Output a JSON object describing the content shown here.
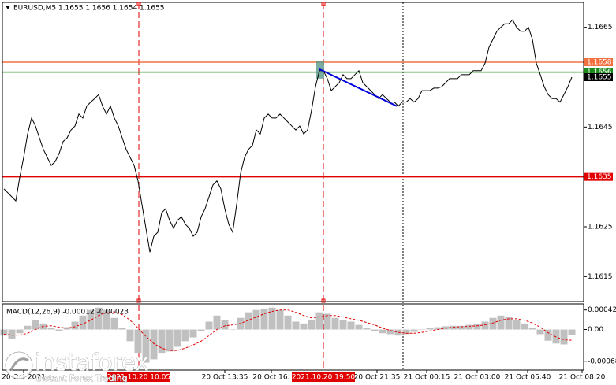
{
  "chart_data": {
    "type": "line",
    "title": "EURUSD,M5 1.1655 1.1656 1.1654 1.1655",
    "series": [
      {
        "name": "EURUSD",
        "color": "#000000",
        "values": [
          1.16326,
          1.16318,
          1.1631,
          1.16302,
          1.16349,
          1.16389,
          1.16436,
          1.16468,
          1.16452,
          1.16428,
          1.16405,
          1.16389,
          1.16373,
          1.16381,
          1.16397,
          1.16421,
          1.16428,
          1.16444,
          1.16452,
          1.16476,
          1.16468,
          1.16492,
          1.165,
          1.16507,
          1.16515,
          1.16492,
          1.16476,
          1.16492,
          1.16468,
          1.16452,
          1.16428,
          1.16405,
          1.16389,
          1.16373,
          1.16342,
          1.16294,
          1.16247,
          1.16199,
          1.16231,
          1.16239,
          1.16278,
          1.16286,
          1.16263,
          1.16247,
          1.16263,
          1.1627,
          1.16255,
          1.16247,
          1.16231,
          1.16239,
          1.1627,
          1.16286,
          1.1631,
          1.16334,
          1.16342,
          1.16326,
          1.16286,
          1.16255,
          1.16239,
          1.16294,
          1.16357,
          1.16389,
          1.16405,
          1.16413,
          1.16444,
          1.16436,
          1.16468,
          1.16476,
          1.16468,
          1.16468,
          1.16476,
          1.16468,
          1.1646,
          1.16452,
          1.16444,
          1.16452,
          1.16436,
          1.16444,
          1.16484,
          1.16531,
          1.16563,
          1.16563,
          1.16547,
          1.16523,
          1.16531,
          1.16539,
          1.16555,
          1.16547,
          1.16547,
          1.16555,
          1.16563,
          1.16539,
          1.16531,
          1.16523,
          1.16515,
          1.16507,
          1.16515,
          1.16507,
          1.165,
          1.165,
          1.16492,
          1.165,
          1.165,
          1.16507,
          1.165,
          1.16507,
          1.16523,
          1.16523,
          1.16523,
          1.16528,
          1.16528,
          1.16531,
          1.16539,
          1.16547,
          1.16547,
          1.16547,
          1.16555,
          1.16555,
          1.16555,
          1.16563,
          1.16563,
          1.16563,
          1.16578,
          1.1661,
          1.16626,
          1.16642,
          1.1665,
          1.16657,
          1.16657,
          1.16665,
          1.1665,
          1.16642,
          1.16642,
          1.1665,
          1.16626,
          1.16578,
          1.16555,
          1.16531,
          1.16515,
          1.16507,
          1.16507,
          1.165,
          1.16515,
          1.16531,
          1.1655
        ]
      }
    ],
    "xlim": [
      -1,
      146.6
    ],
    "ylim": [
      1.161,
      1.167
    ],
    "yticks": [
      1.1615,
      1.1625,
      1.1635,
      1.1645,
      1.1655,
      1.1665
    ],
    "xticks": [
      {
        "value": 5,
        "label": "20 Oct 2021"
      },
      {
        "value": 56,
        "label": "20 Oct 13:35"
      },
      {
        "value": 67.8,
        "label": "20 Oct 16:"
      },
      {
        "value": 94.6,
        "label": "20 Oct 21:35"
      },
      {
        "value": 107.2,
        "label": "21 Oct 00:15"
      },
      {
        "value": 120,
        "label": "21 Oct 03:00"
      },
      {
        "value": 132.8,
        "label": "21 Oct 05:40"
      },
      {
        "value": 146.6,
        "label": "21 Oct 08:20"
      }
    ],
    "xmarkers": [
      {
        "value": 34.2,
        "label": "2021.10.20 10:05",
        "color": "#e00000"
      },
      {
        "value": 81,
        "label": "2021.10.20 19:50",
        "color": "#e00000"
      }
    ],
    "vlines": [
      {
        "value": 101.2,
        "color": "#000000"
      }
    ],
    "levels": [
      {
        "value": 1.1658,
        "color": "#f07040"
      },
      {
        "value": 1.1656,
        "color": "#1a8a1a"
      },
      {
        "value": 1.1655,
        "color": "#000000"
      },
      {
        "value": 1.1635,
        "color": "#e00000"
      }
    ],
    "trendline": {
      "color": "#0000dd",
      "x": [
        80,
        99.6
      ],
      "y": [
        1.16566,
        1.16492
      ]
    },
    "macd": {
      "label": "MACD(12,26,9) -0.00012 -0.00023",
      "xlim": [
        -0.5,
        73.3
      ],
      "ylim": [
        -0.00087,
        0.00055
      ],
      "yticks": [
        0.00042,
        {
          "value": 0,
          "label": "0.00"
        },
        -0.00068
      ],
      "histogram": {
        "color": "#c0c0c0",
        "values": [
          -0.00013,
          -0.0002,
          -8e-05,
          8e-05,
          0.0002,
          0.00013,
          3e-05,
          -3e-05,
          5e-05,
          0.00017,
          0.0003,
          0.00042,
          0.00047,
          0.00042,
          0.00025,
          3e-05,
          -0.00025,
          -0.0005,
          -0.00071,
          -0.00064,
          -0.0005,
          -0.00047,
          -0.00037,
          -0.00025,
          -0.00017,
          -3e-05,
          0.00017,
          0.0003,
          0.0002,
          0,
          0.00025,
          0.00037,
          0.00042,
          0.00045,
          0.00047,
          0.00042,
          0.0003,
          0.00017,
          0.00013,
          0.0002,
          0.00037,
          0.00034,
          0.00025,
          0.0002,
          0.00017,
          0.0001,
          3e-05,
          -3e-05,
          -8e-05,
          -0.0001,
          -0.00013,
          -0.0001,
          -5e-05,
          0,
          3e-05,
          5e-05,
          7e-05,
          8e-05,
          8e-05,
          0.0001,
          0.00012,
          0.00017,
          0.00025,
          0.0003,
          0.00027,
          0.0002,
          0.00013,
          3e-05,
          -0.0001,
          -0.00024,
          -0.0003,
          -0.00032,
          -0.00012
        ]
      },
      "signal": {
        "color": "#e00000",
        "values": [
          -0.0001,
          -0.00012,
          -0.00012,
          -8e-05,
          0,
          7e-05,
          8e-05,
          5e-05,
          3e-05,
          6e-05,
          0.00012,
          0.0002,
          0.0003,
          0.00037,
          0.00038,
          0.00032,
          0.0002,
          3e-05,
          -0.00015,
          -0.0003,
          -0.0004,
          -0.00045,
          -0.00045,
          -0.0004,
          -0.00033,
          -0.00025,
          -0.00013,
          0,
          8e-05,
          0.0001,
          0.00013,
          0.0002,
          0.00027,
          0.00034,
          0.00039,
          0.00042,
          0.00042,
          0.00037,
          0.0003,
          0.00025,
          0.00027,
          0.0003,
          0.0003,
          0.00027,
          0.00023,
          0.0002,
          0.00015,
          0.0001,
          3e-05,
          -2e-05,
          -6e-05,
          -8e-05,
          -8e-05,
          -6e-05,
          -3e-05,
          0,
          3e-05,
          5e-05,
          6e-05,
          7e-05,
          8e-05,
          0.0001,
          0.00014,
          0.0002,
          0.00023,
          0.00023,
          0.0002,
          0.00014,
          5e-05,
          -7e-05,
          -0.00016,
          -0.00022,
          -0.00023
        ]
      }
    },
    "watermark": {
      "name": "instaforex",
      "tagline": "Instant Forex Trading"
    }
  }
}
